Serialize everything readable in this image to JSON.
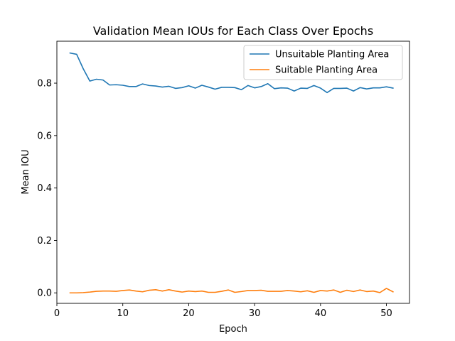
{
  "chart_data": {
    "type": "line",
    "title": "Validation Mean IOUs for Each Class Over Epochs",
    "xlabel": "Epoch",
    "ylabel": "Mean IOU",
    "xlim": [
      0,
      53.5
    ],
    "ylim": [
      -0.04,
      0.96
    ],
    "xticks": [
      0,
      10,
      20,
      30,
      40,
      50
    ],
    "xtick_labels": [
      "0",
      "10",
      "20",
      "30",
      "40",
      "50"
    ],
    "yticks": [
      0.0,
      0.2,
      0.4,
      0.6,
      0.8
    ],
    "ytick_labels": [
      "0.0",
      "0.2",
      "0.4",
      "0.6",
      "0.8"
    ],
    "grid": false,
    "legend_position": "top-right",
    "x": [
      2,
      3,
      4,
      5,
      6,
      7,
      8,
      9,
      10,
      11,
      12,
      13,
      14,
      15,
      16,
      17,
      18,
      19,
      20,
      21,
      22,
      23,
      24,
      25,
      26,
      27,
      28,
      29,
      30,
      31,
      32,
      33,
      34,
      35,
      36,
      37,
      38,
      39,
      40,
      41,
      42,
      43,
      44,
      45,
      46,
      47,
      48,
      49,
      50,
      51
    ],
    "series": [
      {
        "name": "Unsuitable Planting Area",
        "color": "#1f77b4",
        "values": [
          0.915,
          0.91,
          0.855,
          0.808,
          0.815,
          0.812,
          0.793,
          0.794,
          0.792,
          0.787,
          0.787,
          0.797,
          0.791,
          0.789,
          0.785,
          0.788,
          0.78,
          0.783,
          0.79,
          0.781,
          0.792,
          0.785,
          0.777,
          0.784,
          0.784,
          0.783,
          0.775,
          0.791,
          0.782,
          0.787,
          0.798,
          0.779,
          0.782,
          0.781,
          0.77,
          0.781,
          0.78,
          0.791,
          0.781,
          0.764,
          0.78,
          0.78,
          0.781,
          0.77,
          0.783,
          0.778,
          0.782,
          0.782,
          0.786,
          0.781
        ]
      },
      {
        "name": "Suitable Planting Area",
        "color": "#ff7f0e",
        "values": [
          0.0,
          0.0,
          0.001,
          0.003,
          0.006,
          0.007,
          0.007,
          0.006,
          0.009,
          0.011,
          0.007,
          0.004,
          0.01,
          0.012,
          0.007,
          0.012,
          0.007,
          0.003,
          0.007,
          0.005,
          0.007,
          0.002,
          0.002,
          0.006,
          0.011,
          0.002,
          0.005,
          0.009,
          0.009,
          0.01,
          0.006,
          0.006,
          0.006,
          0.009,
          0.007,
          0.004,
          0.008,
          0.002,
          0.009,
          0.007,
          0.011,
          0.002,
          0.01,
          0.005,
          0.011,
          0.005,
          0.007,
          0.001,
          0.017,
          0.004
        ]
      }
    ]
  }
}
